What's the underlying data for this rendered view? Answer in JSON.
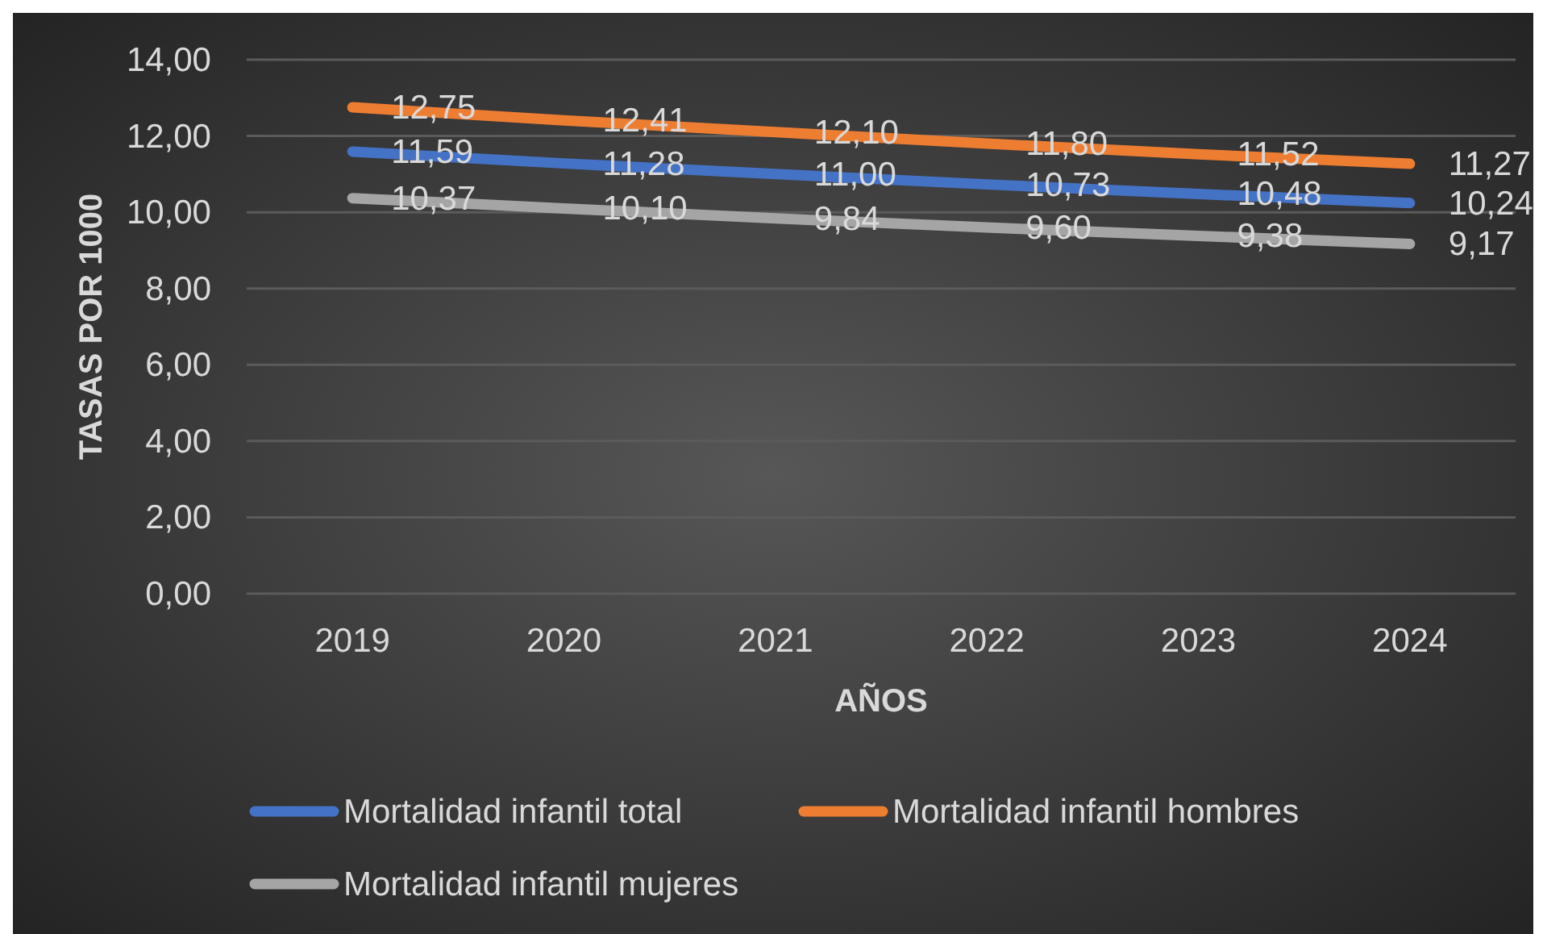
{
  "chart_data": {
    "type": "line",
    "xlabel": "AÑOS",
    "ylabel": "TASAS POR 1000",
    "categories": [
      "2019",
      "2020",
      "2021",
      "2022",
      "2023",
      "2024"
    ],
    "series": [
      {
        "name": "Mortalidad infantil total",
        "color": "#4472c4",
        "values": [
          11.59,
          11.28,
          11.0,
          10.73,
          10.48,
          10.24
        ],
        "value_labels": [
          "11,59",
          "11,28",
          "11,00",
          "10,73",
          "10,48",
          "10,24"
        ]
      },
      {
        "name": "Mortalidad infantil hombres",
        "color": "#ed7d31",
        "values": [
          12.75,
          12.41,
          12.1,
          11.8,
          11.52,
          11.27
        ],
        "value_labels": [
          "12,75",
          "12,41",
          "12,10",
          "11,80",
          "11,52",
          "11,27"
        ]
      },
      {
        "name": "Mortalidad infantil mujeres",
        "color": "#a5a5a5",
        "values": [
          10.37,
          10.1,
          9.84,
          9.6,
          9.38,
          9.17
        ],
        "value_labels": [
          "10,37",
          "10,10",
          "9,84",
          "9,60",
          "9,38",
          "9,17"
        ]
      }
    ],
    "ylim": [
      0,
      14
    ],
    "yticks": [
      {
        "value": 0,
        "label": "0,00"
      },
      {
        "value": 2,
        "label": "2,00"
      },
      {
        "value": 4,
        "label": "4,00"
      },
      {
        "value": 6,
        "label": "6,00"
      },
      {
        "value": 8,
        "label": "8,00"
      },
      {
        "value": 10,
        "label": "10,00"
      },
      {
        "value": 12,
        "label": "12,00"
      },
      {
        "value": 14,
        "label": "14,00"
      }
    ],
    "grid": "y",
    "legend": "bottom"
  }
}
